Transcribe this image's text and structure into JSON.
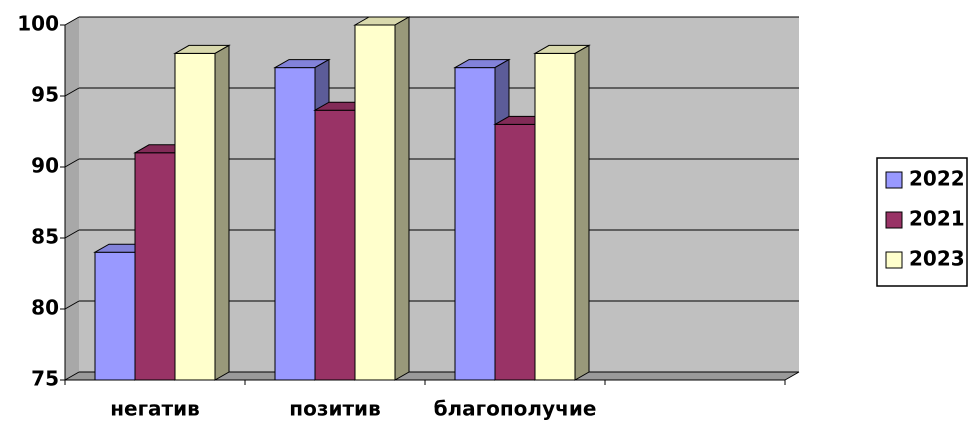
{
  "chart_data": {
    "type": "bar3d",
    "categories": [
      "негатив",
      "позитив",
      "благополучие",
      null
    ],
    "series": [
      {
        "name": "2022",
        "color": "#9999ff",
        "values": [
          84,
          97,
          97,
          null
        ]
      },
      {
        "name": "2021",
        "color": "#993366",
        "values": [
          91,
          94,
          93,
          null
        ]
      },
      {
        "name": "2023",
        "color": "#ffffcc",
        "values": [
          98,
          100,
          98,
          null
        ]
      }
    ],
    "ylim": [
      75,
      100
    ],
    "yticks": [
      75,
      80,
      85,
      90,
      95,
      100
    ],
    "grid": true,
    "legend": "right"
  }
}
